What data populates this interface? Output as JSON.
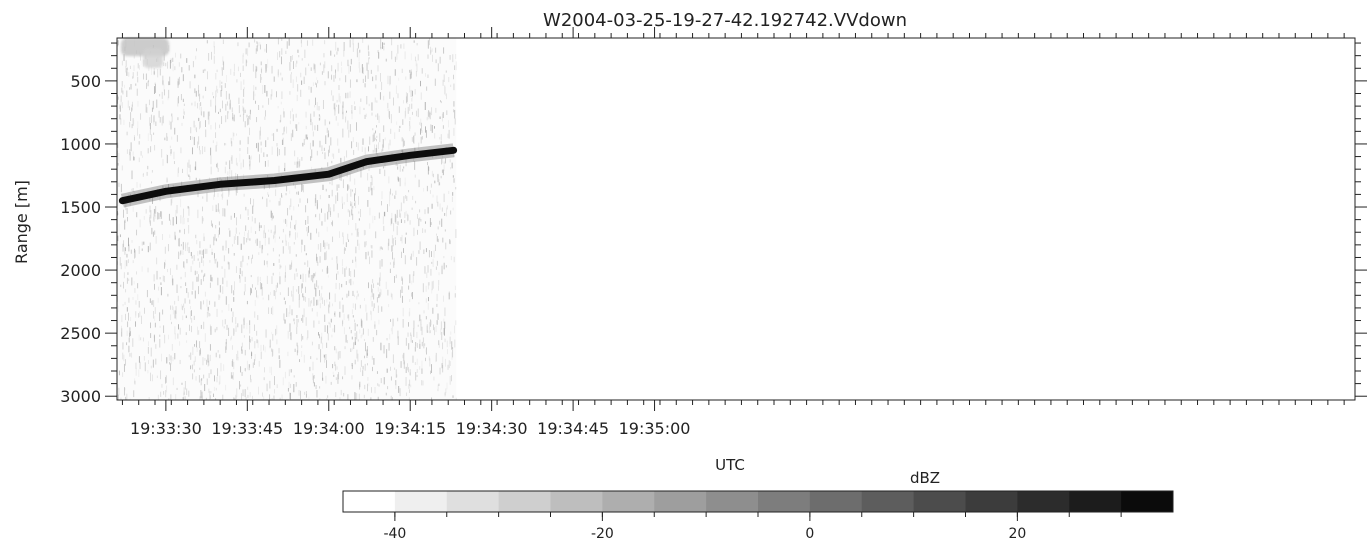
{
  "chart_data": {
    "type": "heatmap",
    "title": "W2004-03-25-19-27-42.192742.VVdown",
    "xlabel": "UTC",
    "ylabel": "Range [m]",
    "colorbar_label": "dBZ",
    "ylim": [
      3030,
      160
    ],
    "y_ticks": [
      500,
      1000,
      1500,
      2000,
      2500,
      3000
    ],
    "x_range_seconds": [
      1401,
      1629
    ],
    "x_ticks": [
      {
        "t": 1410,
        "label": "19:33:30"
      },
      {
        "t": 1425,
        "label": "19:33:45"
      },
      {
        "t": 1440,
        "label": "19:34:00"
      },
      {
        "t": 1455,
        "label": "19:34:15"
      },
      {
        "t": 1470,
        "label": "19:34:30"
      },
      {
        "t": 1485,
        "label": "19:34:45"
      },
      {
        "t": 1500,
        "label": "19:35:00"
      }
    ],
    "data_end_time": "19:34:22",
    "data_end_t": 1463.5,
    "surface_echo": {
      "time": [
        "19:33:22",
        "19:33:30",
        "19:33:40",
        "19:33:50",
        "19:34:00",
        "19:34:07",
        "19:34:15",
        "19:34:22"
      ],
      "t": [
        1402,
        1410,
        1420,
        1430,
        1440,
        1447,
        1455,
        1463
      ],
      "range_m": [
        1450,
        1375,
        1320,
        1290,
        1240,
        1140,
        1090,
        1050
      ]
    },
    "colorbar": {
      "ticks": [
        -40,
        -20,
        0,
        20
      ],
      "min": -45,
      "max": 35,
      "step": 5,
      "colors": [
        "#ffffff",
        "#efefef",
        "#dfdfdf",
        "#cfcfcf",
        "#bebebe",
        "#aeaeae",
        "#9e9e9e",
        "#8e8e8e",
        "#7d7d7d",
        "#6d6d6d",
        "#5d5d5d",
        "#4c4c4c",
        "#3c3c3c",
        "#2c2c2c",
        "#1c1c1c",
        "#0b0b0b"
      ]
    }
  }
}
